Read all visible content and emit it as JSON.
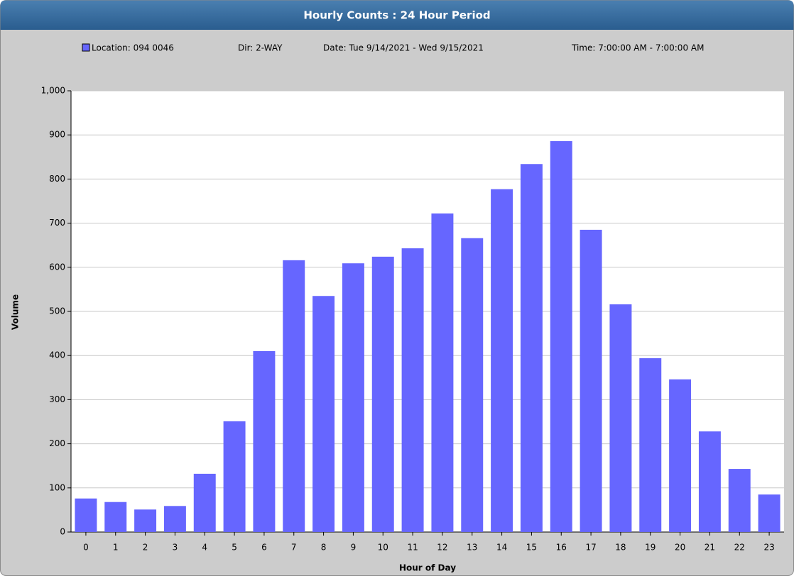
{
  "chart_data": {
    "type": "bar",
    "title": "Hourly Counts : 24 Hour Period",
    "series": [
      {
        "name": "Location: 094 0046",
        "color": "#6666ff",
        "values": [
          76,
          68,
          51,
          59,
          132,
          251,
          410,
          616,
          535,
          609,
          624,
          643,
          722,
          666,
          777,
          834,
          886,
          685,
          516,
          394,
          346,
          228,
          143,
          85
        ]
      }
    ],
    "annotations": [
      "Dir: 2-WAY",
      "Date: Tue 9/14/2021 - Wed 9/15/2021",
      "Time: 7:00:00 AM - 7:00:00 AM"
    ],
    "categories": [
      "0",
      "1",
      "2",
      "3",
      "4",
      "5",
      "6",
      "7",
      "8",
      "9",
      "10",
      "11",
      "12",
      "13",
      "14",
      "15",
      "16",
      "17",
      "18",
      "19",
      "20",
      "21",
      "22",
      "23"
    ],
    "x_label": "Hour of Day",
    "y_label": "Volume",
    "ylim": [
      0,
      1000
    ],
    "yticks": [
      0,
      100,
      200,
      300,
      400,
      500,
      600,
      700,
      800,
      900,
      {
        "value": 1000,
        "label": "1,000"
      }
    ],
    "grid": true
  }
}
